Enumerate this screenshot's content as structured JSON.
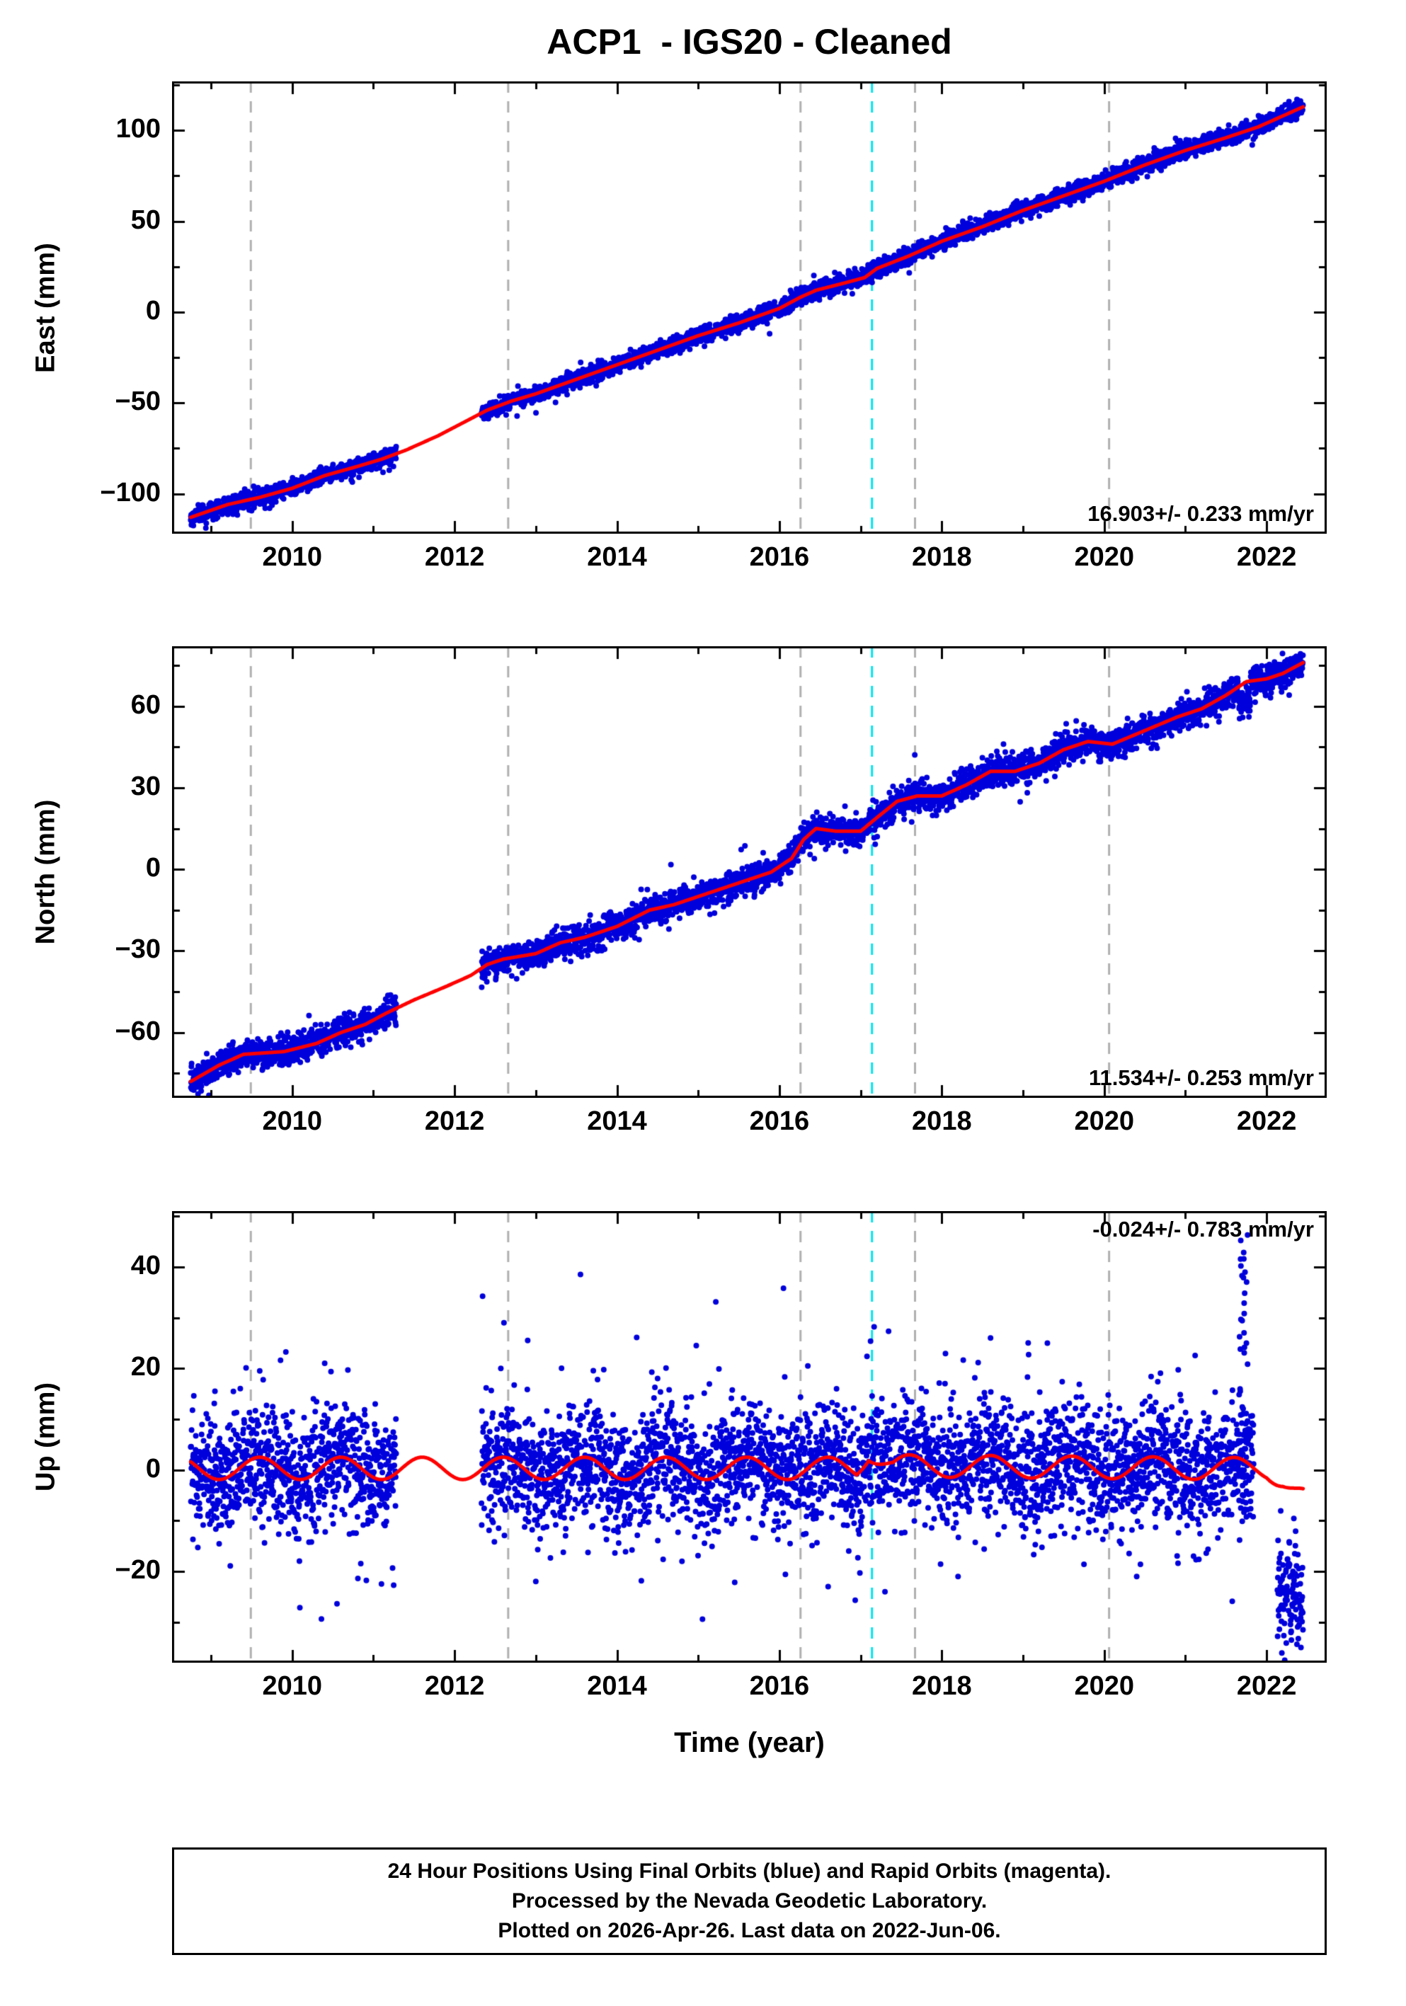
{
  "title": "ACP1  - IGS20 - Cleaned",
  "x_axis": {
    "label": "Time (year)",
    "range": [
      2008.52,
      2022.74
    ],
    "major_ticks": [
      2010,
      2012,
      2014,
      2016,
      2018,
      2020,
      2022
    ],
    "minor_ticks": [
      2009,
      2010,
      2011,
      2012,
      2013,
      2014,
      2015,
      2016,
      2017,
      2018,
      2019,
      2020,
      2021,
      2022
    ]
  },
  "events": {
    "gray_dashed": [
      2009.49,
      2012.66,
      2016.26,
      2017.67,
      2020.06
    ],
    "cyan_dashed": [
      2017.14
    ]
  },
  "colors": {
    "point": "#0000dd",
    "trend": "#ff0000",
    "event_gray": "#b0b0b0",
    "event_cyan": "#00e5ee",
    "frame": "#000000"
  },
  "footer": {
    "line1": "24 Hour Positions Using Final Orbits (blue) and Rapid Orbits (magenta).",
    "line2": "Processed by the Nevada Geodetic Laboratory.",
    "line3": "Plotted on 2026-Apr-26. Last data on 2022-Jun-06."
  },
  "chart_data": {
    "type": "scatter",
    "note": "GPS daily position time series, three stacked panels sharing the time axis",
    "panels_ref": "panels"
  },
  "panels": [
    {
      "name": "east",
      "ylabel": "East (mm)",
      "ylim": [
        -122,
        127
      ],
      "yticks": [
        -100,
        -50,
        0,
        50,
        100
      ],
      "y_minor_interval": 25,
      "rate_label": "16.903+/- 0.233 mm/yr",
      "rate_position": "bottom-right",
      "seasonal": {
        "amplitude": 0,
        "phase": 0
      },
      "trend_breakpoints": [
        [
          2008.75,
          -113
        ],
        [
          2009.2,
          -106
        ],
        [
          2009.6,
          -102
        ],
        [
          2010.0,
          -97
        ],
        [
          2010.4,
          -90
        ],
        [
          2010.8,
          -85
        ],
        [
          2011.1,
          -81
        ],
        [
          2011.4,
          -76
        ],
        [
          2011.8,
          -68
        ],
        [
          2012.1,
          -61
        ],
        [
          2012.4,
          -54
        ],
        [
          2012.7,
          -49
        ],
        [
          2013.0,
          -45
        ],
        [
          2013.5,
          -37
        ],
        [
          2014.0,
          -29
        ],
        [
          2014.5,
          -21
        ],
        [
          2015.0,
          -13
        ],
        [
          2015.5,
          -6
        ],
        [
          2016.0,
          2
        ],
        [
          2016.25,
          8
        ],
        [
          2016.45,
          12
        ],
        [
          2016.8,
          16
        ],
        [
          2017.05,
          19
        ],
        [
          2017.2,
          24
        ],
        [
          2017.6,
          31
        ],
        [
          2018.0,
          39
        ],
        [
          2018.5,
          47
        ],
        [
          2019.0,
          56
        ],
        [
          2019.5,
          64
        ],
        [
          2020.0,
          72
        ],
        [
          2020.5,
          81
        ],
        [
          2021.0,
          89
        ],
        [
          2021.5,
          96
        ],
        [
          2021.9,
          102
        ],
        [
          2022.2,
          108
        ],
        [
          2022.45,
          113
        ]
      ],
      "scatter": {
        "t_start": 2008.75,
        "t_end": 2022.45,
        "step_days": 1,
        "sigma": 2.2,
        "tail_prob": 0.04,
        "tail_mult": 2.0,
        "gaps": [
          [
            2011.28,
            2012.33
          ]
        ],
        "offsets": [],
        "bursts": [],
        "outliers": []
      }
    },
    {
      "name": "north",
      "ylabel": "North (mm)",
      "ylim": [
        -84,
        82
      ],
      "yticks": [
        -60,
        -30,
        0,
        30,
        60
      ],
      "y_minor_interval": 15,
      "rate_label": "11.534+/- 0.253 mm/yr",
      "rate_position": "bottom-right",
      "seasonal": {
        "amplitude": 0,
        "phase": 0
      },
      "trend_breakpoints": [
        [
          2008.75,
          -78
        ],
        [
          2009.1,
          -72
        ],
        [
          2009.4,
          -68
        ],
        [
          2009.9,
          -67
        ],
        [
          2010.3,
          -64
        ],
        [
          2010.6,
          -60
        ],
        [
          2010.9,
          -57
        ],
        [
          2011.15,
          -53
        ],
        [
          2011.5,
          -48
        ],
        [
          2011.9,
          -43
        ],
        [
          2012.2,
          -39
        ],
        [
          2012.4,
          -35
        ],
        [
          2012.6,
          -33
        ],
        [
          2013.0,
          -31
        ],
        [
          2013.3,
          -27
        ],
        [
          2013.6,
          -25
        ],
        [
          2014.0,
          -21
        ],
        [
          2014.4,
          -15
        ],
        [
          2014.7,
          -13
        ],
        [
          2015.1,
          -9
        ],
        [
          2015.5,
          -5
        ],
        [
          2015.9,
          -1
        ],
        [
          2016.15,
          4
        ],
        [
          2016.3,
          11
        ],
        [
          2016.45,
          15
        ],
        [
          2016.7,
          14
        ],
        [
          2017.0,
          14
        ],
        [
          2017.2,
          19
        ],
        [
          2017.45,
          25
        ],
        [
          2017.7,
          27
        ],
        [
          2018.0,
          27
        ],
        [
          2018.3,
          31
        ],
        [
          2018.6,
          36
        ],
        [
          2018.9,
          36
        ],
        [
          2019.2,
          39
        ],
        [
          2019.5,
          44
        ],
        [
          2019.8,
          47
        ],
        [
          2020.1,
          46
        ],
        [
          2020.5,
          51
        ],
        [
          2020.9,
          56
        ],
        [
          2021.2,
          59
        ],
        [
          2021.5,
          64
        ],
        [
          2021.75,
          69
        ],
        [
          2022.0,
          70
        ],
        [
          2022.2,
          72
        ],
        [
          2022.45,
          76
        ]
      ],
      "scatter": {
        "t_start": 2008.75,
        "t_end": 2022.45,
        "step_days": 1,
        "sigma": 2.5,
        "tail_prob": 0.04,
        "tail_mult": 2.0,
        "gaps": [
          [
            2011.28,
            2012.33
          ]
        ],
        "offsets": [
          [
            2021.66,
            2021.8,
            -7
          ]
        ],
        "bursts": [],
        "outliers": []
      }
    },
    {
      "name": "up",
      "ylabel": "Up (mm)",
      "ylim": [
        -38,
        51
      ],
      "yticks": [
        -20,
        0,
        20,
        40
      ],
      "y_minor_interval": 10,
      "rate_label": "-0.024+/- 0.783 mm/yr",
      "rate_position": "top-right",
      "seasonal": {
        "amplitude": 2.2,
        "phase": 2008.35
      },
      "trend_breakpoints": [
        [
          2008.75,
          0.3
        ],
        [
          2016.95,
          0.3
        ],
        [
          2017.1,
          4.0
        ],
        [
          2017.4,
          0.8
        ],
        [
          2022.0,
          0.2
        ],
        [
          2022.2,
          -1.5
        ],
        [
          2022.45,
          -5.0
        ]
      ],
      "scatter": {
        "t_start": 2008.75,
        "t_end": 2022.45,
        "step_days": 1,
        "sigma": 5.5,
        "tail_prob": 0.07,
        "tail_mult": 2.2,
        "gaps": [
          [
            2011.28,
            2012.33
          ],
          [
            2021.84,
            2022.13
          ]
        ],
        "offsets": [
          [
            2022.13,
            2022.46,
            -21
          ]
        ],
        "bursts": [
          [
            2021.66,
            2021.77,
            -12,
            47,
            45
          ]
        ],
        "outliers": [
          [
            2013.55,
            38.5
          ],
          [
            2016.05,
            35.8
          ],
          [
            2012.9,
            25.5
          ],
          [
            2018.6,
            26
          ],
          [
            2019.3,
            25
          ],
          [
            2016.35,
            20.5
          ],
          [
            2010.4,
            21
          ],
          [
            2009.6,
            19.5
          ],
          [
            2014.5,
            18
          ],
          [
            2013.0,
            -22
          ],
          [
            2016.6,
            -23
          ],
          [
            2017.3,
            -24
          ],
          [
            2018.2,
            -21
          ],
          [
            2020.4,
            -21
          ],
          [
            2014.8,
            -18
          ],
          [
            2021.1,
            -17
          ]
        ]
      }
    }
  ]
}
